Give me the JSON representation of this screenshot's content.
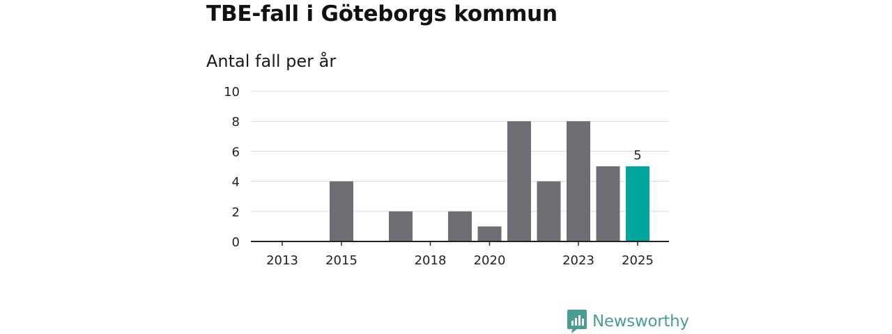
{
  "title": "TBE-fall i Göteborgs kommun",
  "subtitle": "Antal fall per år",
  "brand": {
    "name": "Newsworthy",
    "logo_icon": "bar-chart-badge-icon",
    "color": "#4a9d93"
  },
  "chart_data": {
    "type": "bar",
    "title": "TBE-fall i Göteborgs kommun",
    "subtitle": "Antal fall per år",
    "xlabel": "",
    "ylabel": "",
    "x": [
      2013,
      2014,
      2015,
      2016,
      2017,
      2018,
      2019,
      2020,
      2021,
      2022,
      2023,
      2024,
      2025
    ],
    "values": [
      0,
      0,
      4,
      0,
      2,
      0,
      2,
      1,
      8,
      4,
      8,
      5,
      5
    ],
    "xticks": [
      2013,
      2015,
      2018,
      2020,
      2023,
      2025
    ],
    "yticks": [
      0,
      2,
      4,
      6,
      8,
      10
    ],
    "ylim": [
      0,
      10
    ],
    "grid": true,
    "colors": {
      "bar": "#6f6e75",
      "highlight": "#00a69c",
      "grid": "#d9d9d9",
      "axis": "#222222"
    },
    "highlight_index": 12,
    "data_labels": [
      {
        "index": 12,
        "text": "5"
      }
    ]
  }
}
